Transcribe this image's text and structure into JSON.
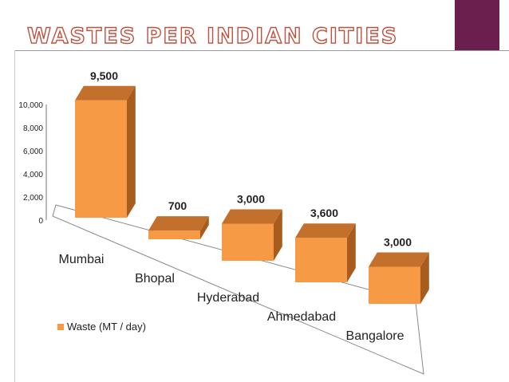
{
  "slide": {
    "title": "WASTES PER INDIAN CITIES"
  },
  "colors": {
    "bar_front": "#f79a45",
    "bar_top": "#c2702c",
    "bar_side": "#a85c1e",
    "title_stroke": "#c0503e",
    "corner_block": "#6b1f4f"
  },
  "chart_data": {
    "type": "bar",
    "style": "3d-column",
    "categories": [
      "Mumbai",
      "Bhopal",
      "Hyderabad",
      "Ahmedabad",
      "Bangalore"
    ],
    "series": [
      {
        "name": "Waste (MT / day)",
        "values": [
          9500,
          700,
          3000,
          3600,
          3000
        ],
        "data_labels": [
          "9,500",
          "700",
          "3,000",
          "3,600",
          "3,000"
        ]
      }
    ],
    "yticks": [
      "0",
      "2,000",
      "4,000",
      "6,000",
      "8,000",
      "10,000"
    ],
    "ylim": [
      0,
      10000
    ],
    "grid": false,
    "legend": "bottom-left",
    "title": "",
    "xlabel": "",
    "ylabel": ""
  }
}
